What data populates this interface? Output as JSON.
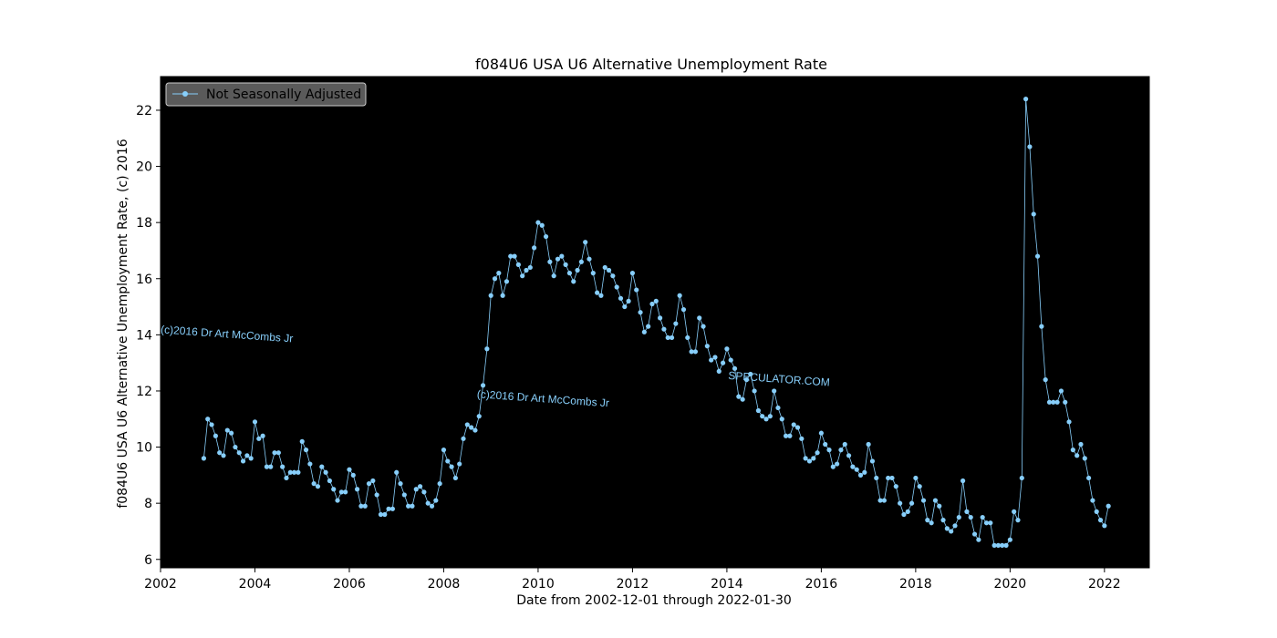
{
  "chart_data": {
    "type": "line",
    "title": "f084U6 USA U6 Alternative Unemployment Rate",
    "xlabel": "Date from 2002-12-01 through 2022-01-30",
    "ylabel": "f084U6 USA U6 Alternative Unemployment Rate, (c) 2016",
    "xlim": [
      2002.0,
      2022.95
    ],
    "ylim": [
      5.7,
      23.2
    ],
    "x_ticks": [
      2002,
      2004,
      2006,
      2008,
      2010,
      2012,
      2014,
      2016,
      2018,
      2020,
      2022
    ],
    "y_ticks": [
      6,
      8,
      10,
      12,
      14,
      16,
      18,
      20,
      22
    ],
    "background": "#000000",
    "line_color": "#87cefa",
    "grid": false,
    "legend_position": "top-left",
    "start": "2002-12",
    "series": [
      {
        "name": "Not Seasonally Adjusted",
        "values": [
          9.6,
          11.0,
          10.8,
          10.4,
          9.8,
          9.7,
          10.6,
          10.5,
          10.0,
          9.8,
          9.5,
          9.7,
          9.6,
          10.9,
          10.3,
          10.4,
          9.3,
          9.3,
          9.8,
          9.8,
          9.3,
          8.9,
          9.1,
          9.1,
          9.1,
          10.2,
          9.9,
          9.4,
          8.7,
          8.6,
          9.3,
          9.1,
          8.8,
          8.5,
          8.1,
          8.4,
          8.4,
          9.2,
          9.0,
          8.5,
          7.9,
          7.9,
          8.7,
          8.8,
          8.3,
          7.6,
          7.6,
          7.8,
          7.8,
          9.1,
          8.7,
          8.3,
          7.9,
          7.9,
          8.5,
          8.6,
          8.4,
          8.0,
          7.9,
          8.1,
          8.7,
          9.9,
          9.5,
          9.3,
          8.9,
          9.4,
          10.3,
          10.8,
          10.7,
          10.6,
          11.1,
          12.2,
          13.5,
          15.4,
          16.0,
          16.2,
          15.4,
          15.9,
          16.8,
          16.8,
          16.5,
          16.1,
          16.3,
          16.4,
          17.1,
          18.0,
          17.9,
          17.5,
          16.6,
          16.1,
          16.7,
          16.8,
          16.5,
          16.2,
          15.9,
          16.3,
          16.6,
          17.3,
          16.7,
          16.2,
          15.5,
          15.4,
          16.4,
          16.3,
          16.1,
          15.7,
          15.3,
          15.0,
          15.2,
          16.2,
          15.6,
          14.8,
          14.1,
          14.3,
          15.1,
          15.2,
          14.6,
          14.2,
          13.9,
          13.9,
          14.4,
          15.4,
          14.9,
          13.9,
          13.4,
          13.4,
          14.6,
          14.3,
          13.6,
          13.1,
          13.2,
          12.7,
          13.0,
          13.5,
          13.1,
          12.8,
          11.8,
          11.7,
          12.4,
          12.6,
          12.0,
          11.3,
          11.1,
          11.0,
          11.1,
          12.0,
          11.4,
          11.0,
          10.4,
          10.4,
          10.8,
          10.7,
          10.3,
          9.6,
          9.5,
          9.6,
          9.8,
          10.5,
          10.1,
          9.9,
          9.3,
          9.4,
          9.9,
          10.1,
          9.7,
          9.3,
          9.2,
          9.0,
          9.1,
          10.1,
          9.5,
          8.9,
          8.1,
          8.1,
          8.9,
          8.9,
          8.6,
          8.0,
          7.6,
          7.7,
          8.0,
          8.9,
          8.6,
          8.1,
          7.4,
          7.3,
          8.1,
          7.9,
          7.4,
          7.1,
          7.0,
          7.2,
          7.5,
          8.8,
          7.7,
          7.5,
          6.9,
          6.7,
          7.5,
          7.3,
          7.3,
          6.5,
          6.5,
          6.5,
          6.5,
          6.7,
          7.7,
          7.4,
          8.9,
          22.4,
          20.7,
          18.3,
          16.8,
          14.3,
          12.4,
          11.6,
          11.6,
          11.6,
          12.0,
          11.6,
          10.9,
          9.9,
          9.7,
          10.1,
          9.6,
          8.9,
          8.1,
          7.7,
          7.4,
          7.2,
          7.9
        ]
      }
    ],
    "annotations": [
      {
        "text": "(c)2016 Dr Art McCombs Jr",
        "x": 2003.4,
        "y": 13.9,
        "rotation": 4
      },
      {
        "text": "(c)2016 Dr Art McCombs Jr",
        "x": 2010.1,
        "y": 11.6,
        "rotation": 4
      },
      {
        "text": "SPECULATOR.COM",
        "x": 2015.1,
        "y": 12.3,
        "rotation": 4
      }
    ]
  }
}
